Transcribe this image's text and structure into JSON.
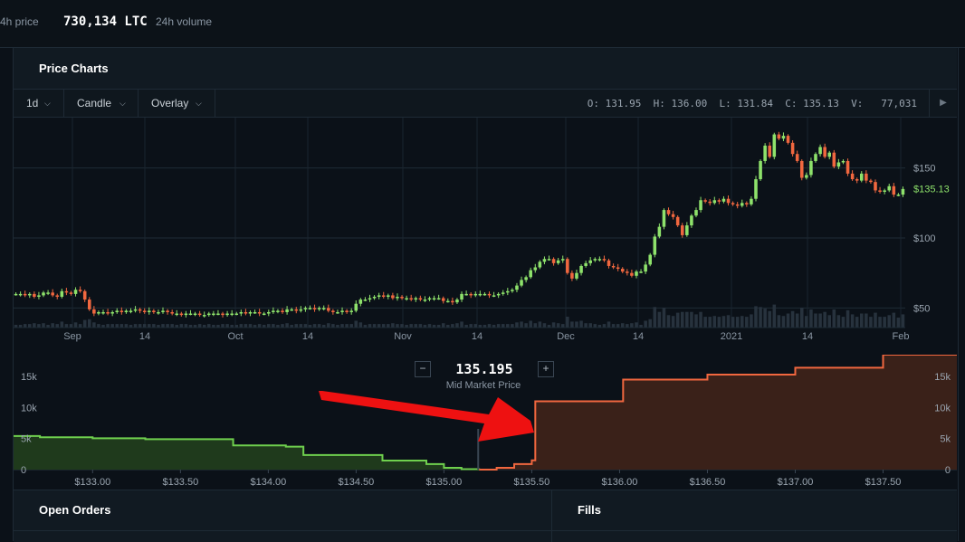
{
  "topbar": {
    "price_label": "4h price",
    "volume_value": "730,134 LTC",
    "volume_label": "24h volume"
  },
  "price_charts": {
    "title": "Price Charts",
    "toolbar": {
      "interval": "1d",
      "chart_type": "Candle",
      "overlay": "Overlay",
      "ohlc": "O: 131.95  H: 136.00  L: 131.84  C: 135.13  V:   77,031",
      "play_icon": "play-icon"
    }
  },
  "chart_data": [
    {
      "type": "candlestick",
      "x_ticks": [
        "Sep",
        "14",
        "Oct",
        "14",
        "Nov",
        "14",
        "Dec",
        "14",
        "2021",
        "14",
        "Feb"
      ],
      "y_ticks": [
        "$150",
        "$100",
        "$50"
      ],
      "y_tick_values": [
        150,
        100,
        50
      ],
      "ylim": [
        36,
        186
      ],
      "last_price_label": "$135.13",
      "last_price": 135.13,
      "grid": true,
      "up_color": "#8ee26b",
      "down_color": "#f0673f",
      "closes": [
        60,
        60,
        59,
        60,
        58,
        59,
        61,
        61,
        59,
        58,
        62,
        61,
        60,
        63,
        62,
        56,
        49,
        46,
        47,
        47,
        46,
        47,
        48,
        47,
        48,
        48,
        49,
        48,
        47,
        48,
        47,
        47,
        48,
        47,
        46,
        46,
        45,
        46,
        46,
        46,
        45,
        45,
        46,
        46,
        46,
        45,
        46,
        46,
        46,
        47,
        46,
        47,
        47,
        46,
        46,
        47,
        48,
        48,
        47,
        49,
        49,
        48,
        49,
        50,
        50,
        49,
        50,
        50,
        48,
        47,
        47,
        48,
        47,
        48,
        53,
        56,
        56,
        57,
        58,
        59,
        58,
        59,
        57,
        58,
        57,
        57,
        56,
        57,
        56,
        56,
        57,
        57,
        57,
        55,
        55,
        54,
        56,
        60,
        60,
        59,
        60,
        60,
        60,
        59,
        59,
        60,
        61,
        62,
        63,
        66,
        70,
        72,
        77,
        79,
        83,
        85,
        85,
        82,
        84,
        85,
        75,
        71,
        75,
        80,
        82,
        84,
        85,
        85,
        84,
        80,
        79,
        78,
        76,
        75,
        73,
        76,
        76,
        81,
        88,
        101,
        108,
        120,
        117,
        115,
        109,
        102,
        109,
        116,
        120,
        127,
        126,
        125,
        127,
        126,
        128,
        125,
        124,
        123,
        125,
        124,
        128,
        142,
        155,
        166,
        158,
        174,
        171,
        173,
        168,
        160,
        155,
        143,
        145,
        155,
        160,
        165,
        158,
        161,
        151,
        154,
        155,
        146,
        142,
        141,
        146,
        141,
        140,
        134,
        133,
        134,
        137,
        131,
        131,
        135
      ],
      "volume_bars": true
    },
    {
      "type": "area",
      "subtype": "depth",
      "x_ticks": [
        "$133.00",
        "$133.50",
        "$134.00",
        "$134.50",
        "$135.00",
        "$135.50",
        "$136.00",
        "$136.50",
        "$137.00",
        "$137.50"
      ],
      "x_tick_values": [
        133.0,
        133.5,
        134.0,
        134.5,
        135.0,
        135.5,
        136.0,
        136.5,
        137.0,
        137.5
      ],
      "xlim": [
        132.55,
        137.92
      ],
      "y_ticks": [
        "15k",
        "10k",
        "5k",
        "0"
      ],
      "y_tick_values": [
        15000,
        10000,
        5000,
        0
      ],
      "ylim": [
        0,
        18500
      ],
      "mid_market_price": "135.195",
      "mid_market_label": "Mid Market Price",
      "mid_minus": "−",
      "mid_plus": "+",
      "bids_color": "#6fd04e",
      "asks_color": "#f0673f",
      "bids": [
        [
          132.55,
          5400
        ],
        [
          132.7,
          5200
        ],
        [
          133.0,
          5050
        ],
        [
          133.3,
          4900
        ],
        [
          133.6,
          4900
        ],
        [
          133.8,
          3900
        ],
        [
          134.1,
          3700
        ],
        [
          134.2,
          2350
        ],
        [
          134.6,
          2350
        ],
        [
          134.65,
          1450
        ],
        [
          134.9,
          900
        ],
        [
          135.0,
          300
        ],
        [
          135.1,
          80
        ],
        [
          135.2,
          0
        ]
      ],
      "asks": [
        [
          135.2,
          0
        ],
        [
          135.3,
          300
        ],
        [
          135.4,
          900
        ],
        [
          135.5,
          1500
        ],
        [
          135.52,
          11000
        ],
        [
          136.0,
          11000
        ],
        [
          136.02,
          14500
        ],
        [
          136.5,
          15300
        ],
        [
          137.0,
          16400
        ],
        [
          137.5,
          16800
        ],
        [
          137.5,
          18500
        ],
        [
          137.92,
          18500
        ]
      ]
    }
  ],
  "open_orders": {
    "title": "Open Orders"
  },
  "fills": {
    "title": "Fills"
  }
}
